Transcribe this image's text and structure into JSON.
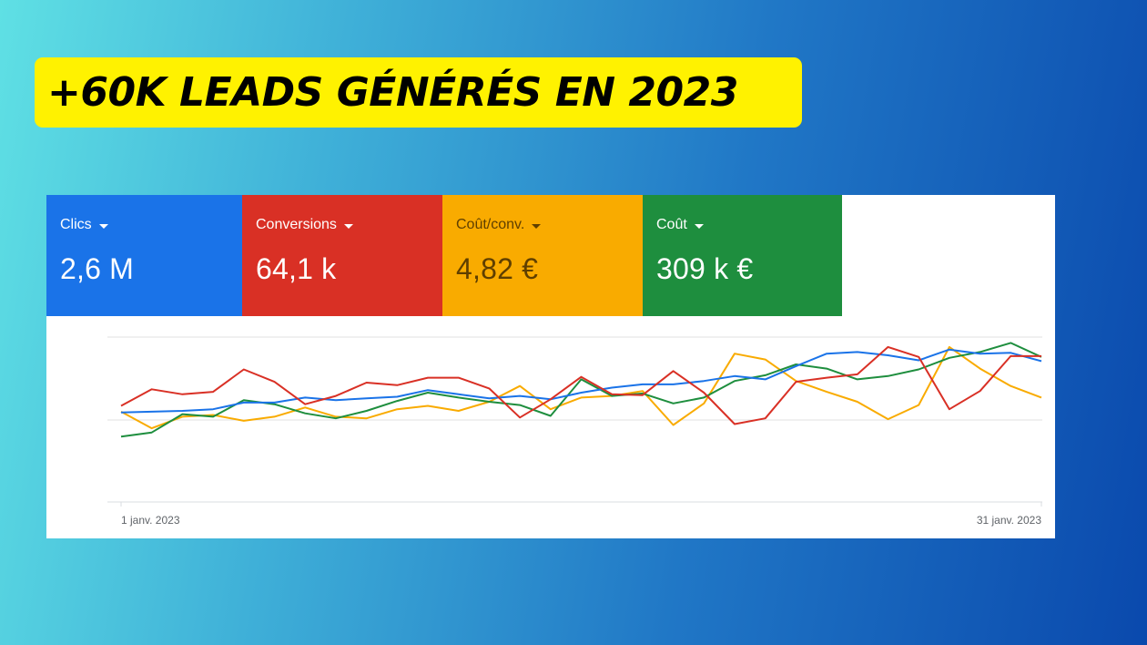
{
  "headline": "+60K LEADS GÉNÉRÉS EN 2023",
  "tiles": [
    {
      "label": "Clics",
      "value": "2,6 M",
      "bg": "#1a73e8",
      "fg": "#ffffff"
    },
    {
      "label": "Conversions",
      "value": "64,1 k",
      "bg": "#d93025",
      "fg": "#ffffff"
    },
    {
      "label": "Coût/conv.",
      "value": "4,82 €",
      "bg": "#f9ab00",
      "fg": "#5f3f00"
    },
    {
      "label": "Coût",
      "value": "309 k €",
      "bg": "#1e8e3e",
      "fg": "#ffffff"
    }
  ],
  "chart_data": {
    "type": "line",
    "x_start_label": "1 janv. 2023",
    "x_end_label": "31 janv. 2023",
    "x": [
      1,
      2,
      3,
      4,
      5,
      6,
      7,
      8,
      9,
      10,
      11,
      12,
      13,
      14,
      15,
      16,
      17,
      18,
      19,
      20,
      21,
      22,
      23,
      24,
      25,
      26,
      27,
      28,
      29,
      30,
      31
    ],
    "grid": true,
    "series": [
      {
        "color": "#1a73e8",
        "values": [
          0.09,
          0.1,
          0.11,
          0.13,
          0.21,
          0.21,
          0.27,
          0.24,
          0.26,
          0.28,
          0.36,
          0.31,
          0.26,
          0.29,
          0.25,
          0.33,
          0.39,
          0.43,
          0.43,
          0.47,
          0.53,
          0.49,
          0.65,
          0.8,
          0.82,
          0.78,
          0.72,
          0.85,
          0.8,
          0.81,
          0.71
        ]
      },
      {
        "color": "#d93025",
        "values": [
          0.17,
          0.37,
          0.31,
          0.34,
          0.61,
          0.46,
          0.19,
          0.29,
          0.45,
          0.42,
          0.51,
          0.51,
          0.38,
          0.03,
          0.25,
          0.52,
          0.31,
          0.3,
          0.59,
          0.33,
          -0.05,
          0.02,
          0.46,
          0.51,
          0.55,
          0.88,
          0.76,
          0.13,
          0.35,
          0.77,
          0.77
        ]
      },
      {
        "color": "#f9ab00",
        "values": [
          0.1,
          -0.1,
          0.04,
          0.06,
          -0.01,
          0.04,
          0.15,
          0.04,
          0.02,
          0.13,
          0.17,
          0.11,
          0.22,
          0.41,
          0.13,
          0.27,
          0.29,
          0.35,
          -0.06,
          0.2,
          0.8,
          0.73,
          0.47,
          0.34,
          0.22,
          0.01,
          0.18,
          0.88,
          0.62,
          0.41,
          0.27
        ]
      },
      {
        "color": "#1e8e3e",
        "values": [
          -0.2,
          -0.15,
          0.07,
          0.04,
          0.24,
          0.19,
          0.08,
          0.02,
          0.11,
          0.23,
          0.33,
          0.27,
          0.22,
          0.18,
          0.05,
          0.49,
          0.29,
          0.32,
          0.2,
          0.27,
          0.47,
          0.54,
          0.67,
          0.62,
          0.49,
          0.53,
          0.61,
          0.75,
          0.82,
          0.93,
          0.76
        ]
      }
    ]
  }
}
